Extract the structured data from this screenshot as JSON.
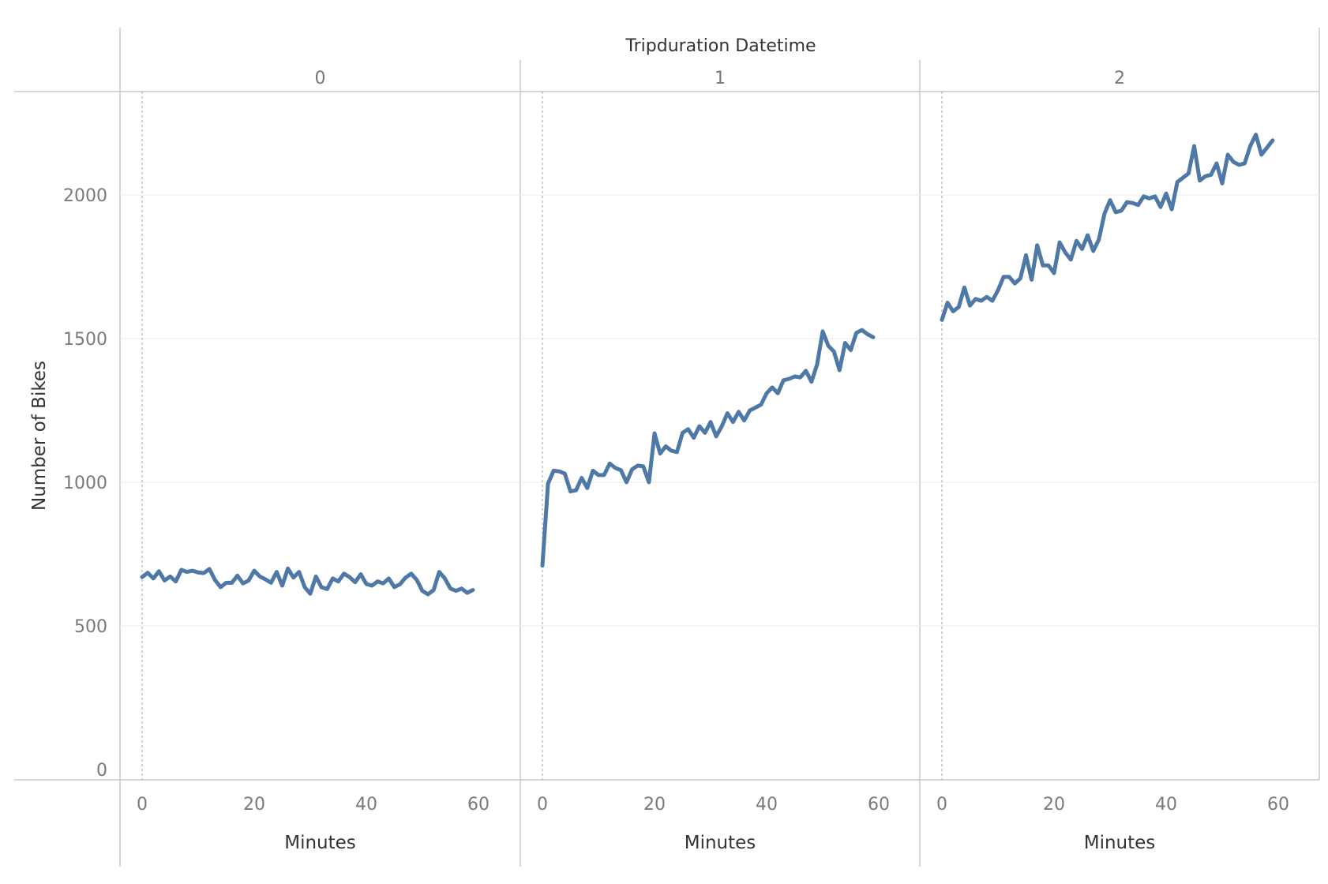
{
  "colors": {
    "line": "#4e79a7"
  },
  "chart_data": {
    "type": "line",
    "title": "Tripduration Datetime",
    "ylabel": "Number of Bikes",
    "xlabel": "Minutes",
    "ylim": [
      0,
      2350
    ],
    "xlim": [
      0,
      60
    ],
    "y_ticks": [
      0,
      500,
      1000,
      1500,
      2000
    ],
    "x_ticks": [
      0,
      20,
      40,
      60
    ],
    "grid": true,
    "legend": "none",
    "panels": [
      {
        "label": "0",
        "x": [
          0,
          1,
          2,
          3,
          4,
          5,
          6,
          7,
          8,
          9,
          10,
          11,
          12,
          13,
          14,
          15,
          16,
          17,
          18,
          19,
          20,
          21,
          22,
          23,
          24,
          25,
          26,
          27,
          28,
          29,
          30,
          31,
          32,
          33,
          34,
          35,
          36,
          37,
          38,
          39,
          40,
          41,
          42,
          43,
          44,
          45,
          46,
          47,
          48,
          49,
          50,
          51,
          52,
          53,
          54,
          55,
          56,
          57,
          58,
          59
        ],
        "y": [
          670,
          685,
          665,
          690,
          658,
          672,
          655,
          695,
          688,
          692,
          686,
          684,
          698,
          660,
          635,
          650,
          650,
          675,
          648,
          658,
          692,
          672,
          662,
          650,
          688,
          640,
          700,
          668,
          688,
          635,
          612,
          672,
          635,
          628,
          665,
          655,
          682,
          670,
          652,
          680,
          646,
          640,
          655,
          648,
          665,
          635,
          645,
          668,
          682,
          660,
          622,
          610,
          625,
          688,
          665,
          630,
          622,
          630,
          615,
          625
        ]
      },
      {
        "label": "1",
        "x": [
          0,
          1,
          2,
          3,
          4,
          5,
          6,
          7,
          8,
          9,
          10,
          11,
          12,
          13,
          14,
          15,
          16,
          17,
          18,
          19,
          20,
          21,
          22,
          23,
          24,
          25,
          26,
          27,
          28,
          29,
          30,
          31,
          32,
          33,
          34,
          35,
          36,
          37,
          38,
          39,
          40,
          41,
          42,
          43,
          44,
          45,
          46,
          47,
          48,
          49,
          50,
          51,
          52,
          53,
          54,
          55,
          56,
          57,
          58,
          59
        ],
        "y": [
          710,
          995,
          1040,
          1038,
          1030,
          968,
          972,
          1015,
          980,
          1040,
          1025,
          1025,
          1065,
          1050,
          1042,
          1000,
          1045,
          1058,
          1055,
          1000,
          1170,
          1100,
          1125,
          1110,
          1105,
          1172,
          1185,
          1155,
          1195,
          1172,
          1210,
          1160,
          1195,
          1240,
          1210,
          1245,
          1215,
          1250,
          1260,
          1270,
          1310,
          1330,
          1310,
          1355,
          1360,
          1368,
          1365,
          1388,
          1350,
          1410,
          1525,
          1475,
          1455,
          1390,
          1485,
          1460,
          1520,
          1530,
          1515,
          1505
        ]
      },
      {
        "label": "2",
        "x": [
          0,
          1,
          2,
          3,
          4,
          5,
          6,
          7,
          8,
          9,
          10,
          11,
          12,
          13,
          14,
          15,
          16,
          17,
          18,
          19,
          20,
          21,
          22,
          23,
          24,
          25,
          26,
          27,
          28,
          29,
          30,
          31,
          32,
          33,
          34,
          35,
          36,
          37,
          38,
          39,
          40,
          41,
          42,
          43,
          44,
          45,
          46,
          47,
          48,
          49,
          50,
          51,
          52,
          53,
          54,
          55,
          56,
          57,
          58,
          59
        ],
        "y": [
          1565,
          1625,
          1595,
          1610,
          1678,
          1615,
          1638,
          1632,
          1645,
          1632,
          1668,
          1715,
          1715,
          1692,
          1710,
          1790,
          1705,
          1825,
          1755,
          1755,
          1728,
          1835,
          1800,
          1775,
          1840,
          1812,
          1860,
          1805,
          1845,
          1935,
          1982,
          1940,
          1945,
          1975,
          1972,
          1965,
          1995,
          1988,
          1995,
          1958,
          2005,
          1950,
          2045,
          2060,
          2075,
          2170,
          2050,
          2065,
          2070,
          2110,
          2040,
          2140,
          2115,
          2105,
          2110,
          2170,
          2210,
          2140,
          2165,
          2190
        ]
      }
    ]
  }
}
